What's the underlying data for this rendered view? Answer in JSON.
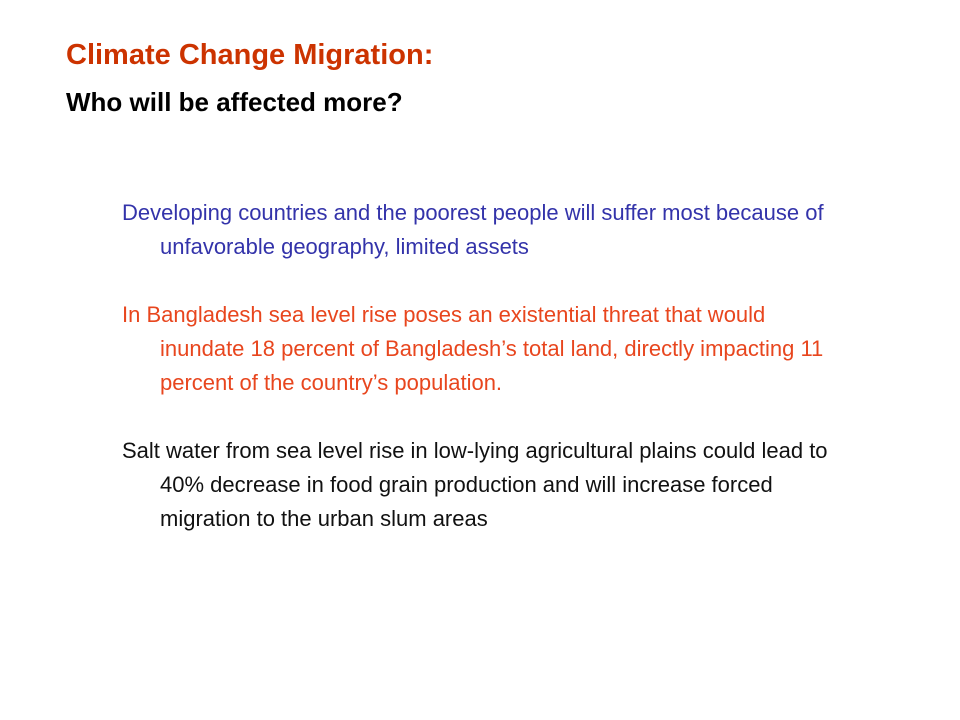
{
  "slide": {
    "title": "Climate Change Migration:",
    "subtitle": "Who will be affected more?",
    "paragraphs": [
      {
        "text": "Developing countries and the poorest people will suffer most because of unfavorable geography, limited assets",
        "color": "#3333aa"
      },
      {
        "text": "In Bangladesh sea level rise poses an existential threat that would inundate 18 percent of Bangladesh’s total land, directly impacting 11 percent of the country’s population.",
        "color": "#e8461e"
      },
      {
        "text": "Salt water from sea level rise in low-lying agricultural plains could lead to 40% decrease in food grain production and will increase forced migration to the urban slum areas",
        "color": "#111111"
      }
    ]
  },
  "colors": {
    "title": "#cc3300",
    "subtitle": "#000000",
    "background": "#ffffff"
  }
}
